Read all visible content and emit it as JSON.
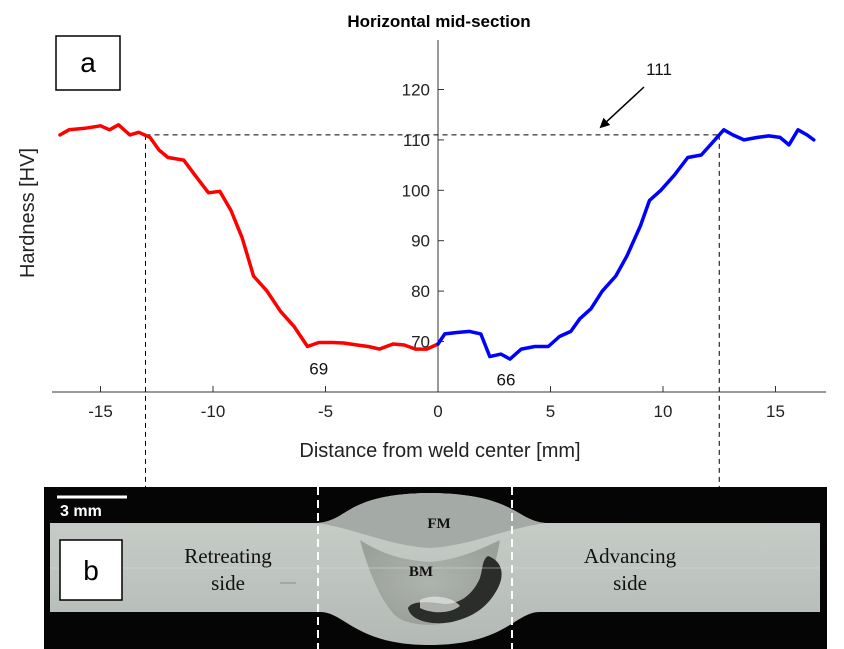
{
  "chart_data": {
    "type": "line",
    "title": "Horizontal mid-section",
    "xlabel": "Distance from weld center [mm]",
    "ylabel": "Hardness [HV]",
    "xlim": [
      -17,
      17
    ],
    "ylim": [
      60,
      120
    ],
    "xticks": [
      -15,
      -10,
      -5,
      0,
      5,
      10,
      15
    ],
    "yticks": [
      70,
      80,
      90,
      100,
      110,
      120
    ],
    "xtick_labels": [
      "-15",
      "-10",
      "-5",
      "0",
      "5",
      "10",
      "15"
    ],
    "ytick_labels": [
      "70",
      "80",
      "90",
      "100",
      "110",
      "120"
    ],
    "grid": false,
    "series": [
      {
        "color": "#ff0000",
        "x": [
          -16.8,
          -16.4,
          -15.7,
          -15,
          -14.6,
          -14.2,
          -13.7,
          -13.3,
          -12.8,
          -12.4,
          -12,
          -11.3,
          -10.8,
          -10.2,
          -9.7,
          -9.2,
          -8.7,
          -8.2,
          -7.6,
          -7,
          -6.4,
          -5.8,
          -5.3,
          -4.7,
          -4.2,
          -3.6,
          -3.1,
          -2.6,
          -2.0,
          -1.5,
          -1.0,
          -0.5,
          0
        ],
        "y": [
          111,
          112,
          112.3,
          112.8,
          112,
          113,
          111,
          111.5,
          110.5,
          108,
          106.5,
          106,
          103,
          99.5,
          99.8,
          96,
          90.5,
          83,
          80,
          76,
          73,
          69,
          69.8,
          69.8,
          69.7,
          69.3,
          69,
          68.5,
          69.5,
          69.3,
          68.5,
          68.5,
          69.5
        ]
      },
      {
        "color": "#0000ff",
        "x": [
          0,
          0.3,
          0.9,
          1.4,
          1.9,
          2.3,
          2.8,
          3.2,
          3.7,
          4.3,
          4.9,
          5.4,
          5.9,
          6.3,
          6.8,
          7.3,
          7.9,
          8.4,
          9,
          9.4,
          9.9,
          10.5,
          11.1,
          11.7,
          12.3,
          12.7,
          13.1,
          13.6,
          14.2,
          14.7,
          15.2,
          15.6,
          16,
          16.4,
          16.7
        ],
        "y": [
          69.5,
          71.5,
          71.8,
          72,
          71.5,
          67,
          67.5,
          66.5,
          68.5,
          69,
          69,
          71,
          72,
          74.5,
          76.5,
          80,
          83,
          87,
          93,
          98,
          100,
          103,
          106.5,
          107,
          110,
          112,
          111,
          110,
          110.5,
          110.8,
          110.5,
          109,
          112,
          111,
          110
        ]
      }
    ],
    "reference_line": {
      "y": 111
    },
    "x_boundaries": [
      -13,
      12.5
    ],
    "annotations": [
      {
        "text": "69",
        "x": -5.3,
        "y": 69
      },
      {
        "text": "66",
        "x": 3.2,
        "y": 66
      },
      {
        "text": "111",
        "x": 9,
        "y": 111
      }
    ]
  },
  "panels": {
    "a": "a",
    "b": "b"
  },
  "micrograph": {
    "scale_bar": "3 mm",
    "labels": {
      "retreating_1": "Retreating",
      "retreating_2": "side",
      "advancing_1": "Advancing",
      "advancing_2": "side",
      "fm": "FM",
      "bm": "BM"
    }
  },
  "colors": {
    "retreating": "#ff0000",
    "advancing": "#0000ff"
  }
}
